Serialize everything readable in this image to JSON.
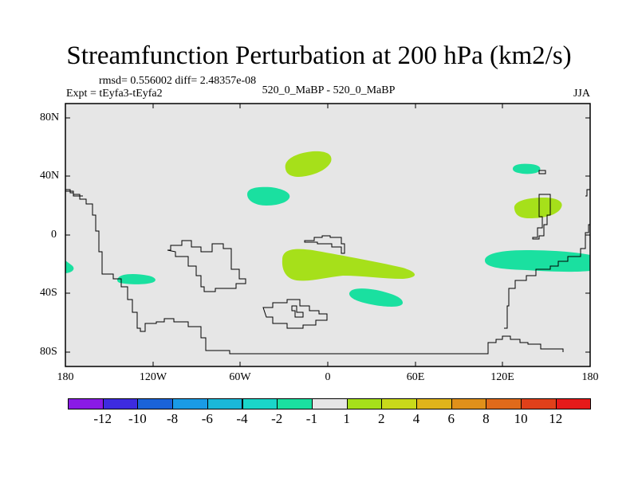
{
  "title": "Streamfunction Perturbation at 200 hPa (km2/s)",
  "stats": {
    "rmsd_line": "rmsd= 0.556002 diff= 2.48357e-08"
  },
  "experiment": "Expt = tEyfa3-tEyfa2",
  "case": "520_0_MaBP - 520_0_MaBP",
  "season": "JJA",
  "axes": {
    "lat_ticks": [
      "80N",
      "40N",
      "0",
      "40S",
      "80S"
    ],
    "lon_ticks": [
      "180",
      "120W",
      "60W",
      "0",
      "60E",
      "120E",
      "180"
    ]
  },
  "colorbar": {
    "colors": [
      "#8a1ae6",
      "#3d2be0",
      "#1a63d9",
      "#1a9be6",
      "#1ab8d9",
      "#1ad6c9",
      "#1ae0a0",
      "#e6e6e6",
      "#a6e01a",
      "#c9d91a",
      "#e0b41a",
      "#e0901a",
      "#e06a1a",
      "#e0401a",
      "#e61a1a"
    ],
    "labels": [
      "-12",
      "-10",
      "-8",
      "-6",
      "-4",
      "-2",
      "-1",
      "1",
      "2",
      "4",
      "6",
      "8",
      "10",
      "12"
    ]
  },
  "fields": {
    "background_color": "#e6e6e6",
    "negative_color": "#1ae0a0",
    "positive_color": "#a6e01a"
  }
}
